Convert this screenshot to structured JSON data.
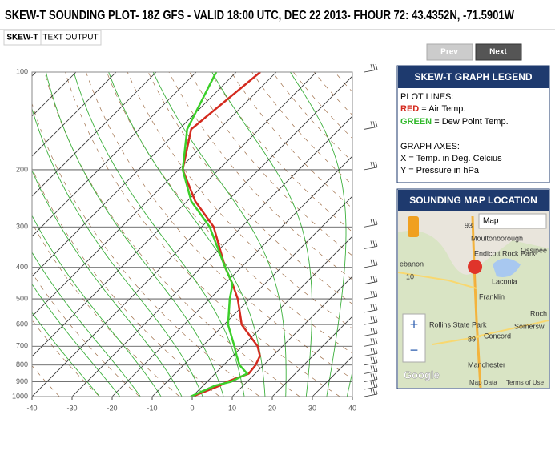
{
  "header": {
    "title": "SKEW-T SOUNDING PLOT- 18Z GFS - VALID 18:00 UTC, DEC 22 2013- FHOUR 72: 43.4352N, -71.5901W"
  },
  "tabs": [
    "SKEW-T",
    "TEXT OUTPUT"
  ],
  "buttons": {
    "prev": "Prev",
    "next": "Next"
  },
  "legend": {
    "title": "SKEW-T GRAPH LEGEND",
    "plot_lines": "PLOT LINES:",
    "red": "RED",
    "green": "GREEN",
    "sep": "=",
    "axes": "GRAPH AXES:",
    "x_axis": "X = Temp. in Deg. Celcius",
    "y_axis": "Y = Pressure in hPa"
  },
  "map": {
    "title": "SOUNDING MAP LOCATION",
    "dropdown": "Map",
    "labels": [
      "Moultonborough",
      "Endicott Rock Park",
      "Ossipee",
      "ebanon",
      "Laconia",
      "Franklin",
      "Roch",
      "Rollins State Park",
      "Somersw",
      "Concord",
      "Manchester",
      "10",
      "93",
      "89"
    ],
    "zoom_in": "+",
    "zoom_out": "−",
    "google": "Google",
    "map_data": "Map Data",
    "terms": "Terms of Use"
  },
  "chart_data": {
    "type": "skew-t",
    "y_scale": "log",
    "ylim": [
      100,
      1000
    ],
    "yticks": [
      100,
      200,
      300,
      400,
      500,
      600,
      700,
      800,
      900,
      1000
    ],
    "xlim": [
      -40,
      40
    ],
    "xticks": [
      -40,
      -30,
      -20,
      -10,
      0,
      10,
      20,
      30,
      40
    ],
    "y": [
      100,
      150,
      200,
      250,
      300,
      400,
      450,
      500,
      600,
      700,
      750,
      800,
      850,
      900,
      925,
      1000
    ],
    "series": [
      {
        "name": "Air Temp.",
        "color": "#d42a1e",
        "values": [
          -64,
          -67,
          -59,
          -48,
          -37,
          -24,
          -18,
          -13,
          -5.6,
          3.8,
          6.8,
          8,
          8.4,
          5,
          4.2,
          0
        ]
      },
      {
        "name": "Dew Point Temp.",
        "color": "#3ccf2a",
        "values": [
          -75,
          -68,
          -59,
          -49,
          -38,
          -24,
          -18,
          -15,
          -9,
          -2,
          1,
          4,
          8,
          6,
          3,
          -0.4
        ]
      }
    ]
  }
}
